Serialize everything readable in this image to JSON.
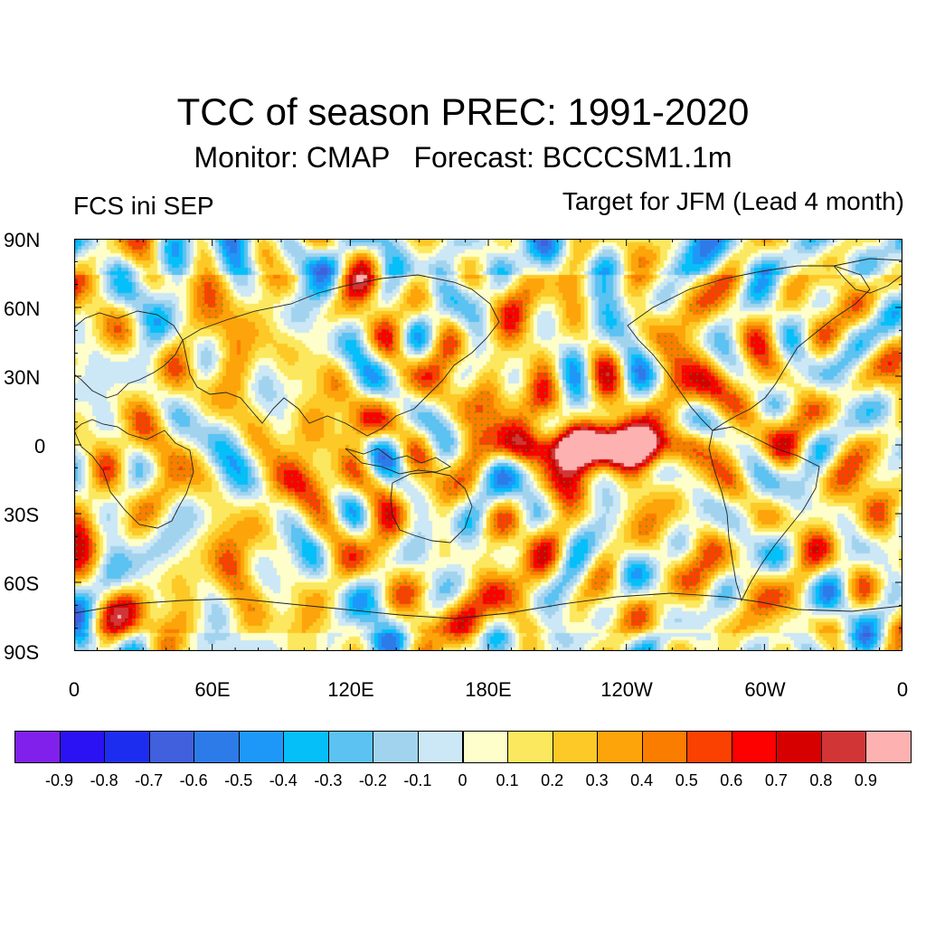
{
  "title": "TCC of season PREC: 1991-2020",
  "subtitle": "Monitor: CMAP   Forecast: BCCCSM1.1m",
  "left_label": "FCS ini SEP",
  "right_label": "Target for JFM (Lead 4 month)",
  "y_axis_labels": [
    "90N",
    "60N",
    "30N",
    "0",
    "30S",
    "60S",
    "90S"
  ],
  "x_axis_labels": [
    "0",
    "60E",
    "120E",
    "180E",
    "120W",
    "60W",
    "0"
  ],
  "colorbar": {
    "colors": [
      "#8120ea",
      "#2a12f5",
      "#1d2df0",
      "#4060dd",
      "#2d7be9",
      "#1e98f8",
      "#05bff9",
      "#5bc2f2",
      "#a2d3ee",
      "#cce7f6",
      "#fefecb",
      "#fce85e",
      "#fdc927",
      "#fca409",
      "#fb7d00",
      "#fb4101",
      "#fd0000",
      "#d60000",
      "#d23536",
      "#feb1b1"
    ],
    "labels": [
      "-0.9",
      "-0.8",
      "-0.7",
      "-0.6",
      "-0.5",
      "-0.4",
      "-0.3",
      "-0.2",
      "-0.1",
      "0",
      "0.1",
      "0.2",
      "0.3",
      "0.4",
      "0.5",
      "0.6",
      "0.7",
      "0.8",
      "0.9"
    ]
  },
  "map_data": {
    "field": "TCC of seasonal precipitation",
    "x_range": [
      0,
      360
    ],
    "y_range": [
      -90,
      90
    ],
    "notable_regions": [
      {
        "lon": 210,
        "lat": 0,
        "value": 0.8
      },
      {
        "lon": 240,
        "lat": 0,
        "value": 0.9
      },
      {
        "lon": 125,
        "lat": 10,
        "value": 0.7
      },
      {
        "lon": 190,
        "lat": 20,
        "value": 0.6
      },
      {
        "lon": 100,
        "lat": -15,
        "value": 0.6
      },
      {
        "lon": 130,
        "lat": 0,
        "value": -0.3
      },
      {
        "lon": 270,
        "lat": 25,
        "value": 0.6
      },
      {
        "lon": 25,
        "lat": -75,
        "value": 0.5
      },
      {
        "lon": 190,
        "lat": -70,
        "value": 0.5
      }
    ]
  }
}
